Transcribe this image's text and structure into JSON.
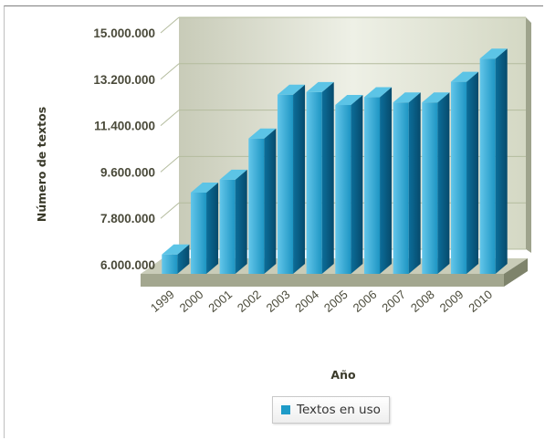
{
  "chart_data": {
    "type": "bar",
    "categories": [
      "1999",
      "2000",
      "2001",
      "2002",
      "2003",
      "2004",
      "2005",
      "2006",
      "2007",
      "2008",
      "2009",
      "2010"
    ],
    "series": [
      {
        "name": "Textos en uso",
        "values": [
          6400000,
          8800000,
          9300000,
          10900000,
          12600000,
          12700000,
          12200000,
          12500000,
          12300000,
          12300000,
          13100000,
          14000000
        ]
      }
    ],
    "ylim": [
      6000000,
      15000000
    ],
    "yticks": [
      6000000,
      7800000,
      9600000,
      11400000,
      13200000,
      15000000
    ],
    "ytick_labels": [
      "6.000.000",
      "7.800.000",
      "9.600.000",
      "11.400.000",
      "13.200.000",
      "15.000.000"
    ],
    "xlabel": "Año",
    "ylabel": "Número de textos",
    "grid": true,
    "legend_position": "bottom",
    "style": "3d-column",
    "colors": {
      "bar": "#1e9bc8",
      "bar_side": "#0a5a82",
      "bar_top": "#5cc4e6",
      "wall": "#d8dccb",
      "floor": "#b8bca6",
      "grid": "#b4bc9e"
    }
  }
}
